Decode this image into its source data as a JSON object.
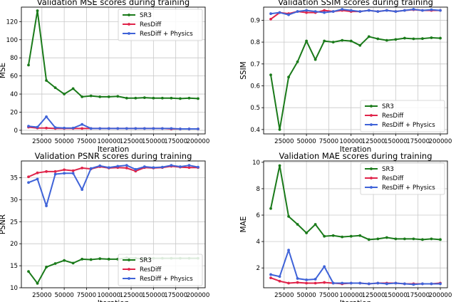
{
  "chart_data": [
    {
      "type": "line",
      "title": "Validation MSE scores during training",
      "xlabel": "Iteration",
      "ylabel": "MSE",
      "xlim": [
        2000,
        208000
      ],
      "ylim": [
        -4,
        136
      ],
      "xticks": [
        25000,
        50000,
        75000,
        100000,
        125000,
        150000,
        175000,
        200000
      ],
      "yticks": [
        0,
        20,
        40,
        60,
        80,
        100,
        120
      ],
      "legend_position": "top-right",
      "grid": true,
      "x": [
        10000,
        20000,
        30000,
        40000,
        50000,
        60000,
        70000,
        80000,
        90000,
        100000,
        110000,
        120000,
        130000,
        140000,
        150000,
        160000,
        170000,
        180000,
        190000,
        200000
      ],
      "series": [
        {
          "name": "SR3",
          "color": "#1a7a1a",
          "values": [
            72,
            132,
            55,
            47,
            40,
            46,
            37,
            38,
            37,
            37,
            37.5,
            35.5,
            35.5,
            36,
            35.5,
            35.5,
            35.5,
            35,
            35.5,
            35
          ]
        },
        {
          "name": "ResDiff",
          "color": "#e0244a",
          "values": [
            3.5,
            2.5,
            2.5,
            2,
            2,
            2,
            2,
            2,
            2,
            2,
            2,
            2,
            2,
            2,
            2,
            2,
            1.5,
            1.5,
            1.5,
            1.5
          ]
        },
        {
          "name": "ResDiff + Physics",
          "color": "#3f63d8",
          "values": [
            4.5,
            3.5,
            15,
            3,
            2.5,
            2.5,
            6.5,
            2,
            2,
            2,
            2,
            2,
            2,
            2,
            2,
            2,
            2,
            1.5,
            1.5,
            1.5
          ]
        }
      ]
    },
    {
      "type": "line",
      "title": "Validation SSIM scores during training",
      "xlabel": "Iteration",
      "ylabel": "SSIM",
      "xlim": [
        2000,
        208000
      ],
      "ylim": [
        0.38,
        0.96
      ],
      "xticks": [
        25000,
        50000,
        75000,
        100000,
        125000,
        150000,
        175000,
        200000
      ],
      "yticks": [
        0.4,
        0.5,
        0.6,
        0.7,
        0.8,
        0.9
      ],
      "legend_position": "bottom-right",
      "grid": true,
      "x": [
        10000,
        20000,
        30000,
        40000,
        50000,
        60000,
        70000,
        80000,
        90000,
        100000,
        110000,
        120000,
        130000,
        140000,
        150000,
        160000,
        170000,
        180000,
        190000,
        200000
      ],
      "series": [
        {
          "name": "SR3",
          "color": "#1a7a1a",
          "values": [
            0.65,
            0.4,
            0.64,
            0.71,
            0.805,
            0.72,
            0.805,
            0.8,
            0.808,
            0.805,
            0.785,
            0.825,
            0.815,
            0.808,
            0.812,
            0.818,
            0.815,
            0.816,
            0.82,
            0.818
          ]
        },
        {
          "name": "ResDiff",
          "color": "#e0244a",
          "values": [
            0.905,
            0.935,
            0.93,
            0.94,
            0.935,
            0.935,
            0.945,
            0.94,
            0.945,
            0.94,
            0.94,
            0.945,
            0.94,
            0.945,
            0.94,
            0.945,
            0.948,
            0.945,
            0.945,
            0.945
          ]
        },
        {
          "name": "ResDiff + Physics",
          "color": "#3f63d8",
          "values": [
            0.93,
            0.935,
            0.925,
            0.94,
            0.945,
            0.94,
            0.935,
            0.94,
            0.95,
            0.945,
            0.94,
            0.945,
            0.94,
            0.945,
            0.94,
            0.945,
            0.95,
            0.945,
            0.948,
            0.945
          ]
        }
      ]
    },
    {
      "type": "line",
      "title": "Validation PSNR scores during training",
      "xlabel": "Iteration",
      "ylabel": "PSNR",
      "xlim": [
        2000,
        208000
      ],
      "ylim": [
        10,
        38.8
      ],
      "xticks": [
        25000,
        50000,
        75000,
        100000,
        125000,
        150000,
        175000,
        200000
      ],
      "yticks": [
        10,
        15,
        20,
        25,
        30,
        35
      ],
      "legend_position": "bottom-right",
      "grid": true,
      "x": [
        10000,
        20000,
        30000,
        40000,
        50000,
        60000,
        70000,
        80000,
        90000,
        100000,
        110000,
        120000,
        130000,
        140000,
        150000,
        160000,
        170000,
        180000,
        190000,
        200000
      ],
      "series": [
        {
          "name": "SR3",
          "color": "#1a7a1a",
          "values": [
            13.7,
            11,
            14.7,
            15.5,
            16.2,
            15.6,
            16.5,
            16.4,
            16.6,
            16.5,
            16.5,
            16.8,
            16.7,
            16.6,
            16.7,
            16.7,
            16.7,
            16.7,
            16.7,
            16.7
          ]
        },
        {
          "name": "ResDiff",
          "color": "#e0244a",
          "values": [
            35.2,
            36.1,
            36.4,
            36.4,
            36.8,
            36.6,
            37.2,
            37.0,
            37.5,
            37.2,
            37.3,
            37.2,
            36.5,
            37.3,
            37.2,
            37.3,
            37.6,
            37.4,
            37.3,
            37.3
          ]
        },
        {
          "name": "ResDiff + Physics",
          "color": "#3f63d8",
          "values": [
            33.9,
            34.7,
            28.6,
            35.8,
            36.0,
            36.0,
            32.3,
            37.1,
            37.7,
            37.3,
            37.6,
            37.8,
            36.9,
            37.5,
            37.3,
            37.4,
            37.8,
            37.5,
            37.8,
            37.4
          ]
        }
      ]
    },
    {
      "type": "line",
      "title": "Validation MAE scores during training",
      "xlabel": "Iteration",
      "ylabel": "MAE",
      "xlim": [
        2000,
        208000
      ],
      "ylim": [
        0.5,
        10.1
      ],
      "xticks": [
        25000,
        50000,
        75000,
        100000,
        125000,
        150000,
        175000,
        200000
      ],
      "yticks": [
        2,
        4,
        6,
        8,
        10
      ],
      "legend_position": "top-right",
      "grid": true,
      "x": [
        10000,
        20000,
        30000,
        40000,
        50000,
        60000,
        70000,
        80000,
        90000,
        100000,
        110000,
        120000,
        130000,
        140000,
        150000,
        160000,
        170000,
        180000,
        190000,
        200000
      ],
      "series": [
        {
          "name": "SR3",
          "color": "#1a7a1a",
          "values": [
            6.5,
            9.75,
            5.9,
            5.3,
            4.65,
            5.3,
            4.4,
            4.45,
            4.35,
            4.4,
            4.45,
            4.15,
            4.2,
            4.3,
            4.2,
            4.2,
            4.2,
            4.15,
            4.2,
            4.15
          ]
        },
        {
          "name": "ResDiff",
          "color": "#e0244a",
          "values": [
            1.25,
            1.0,
            0.85,
            0.9,
            0.85,
            0.85,
            0.9,
            0.85,
            0.8,
            0.85,
            0.85,
            0.8,
            0.85,
            0.85,
            0.85,
            0.8,
            0.8,
            0.8,
            0.8,
            0.85
          ]
        },
        {
          "name": "ResDiff + Physics",
          "color": "#3f63d8",
          "values": [
            1.5,
            1.35,
            3.35,
            1.2,
            1.1,
            1.15,
            2.1,
            0.85,
            0.85,
            0.85,
            0.85,
            0.8,
            0.85,
            0.8,
            0.85,
            0.8,
            0.75,
            0.8,
            0.8,
            0.8
          ]
        }
      ]
    }
  ]
}
